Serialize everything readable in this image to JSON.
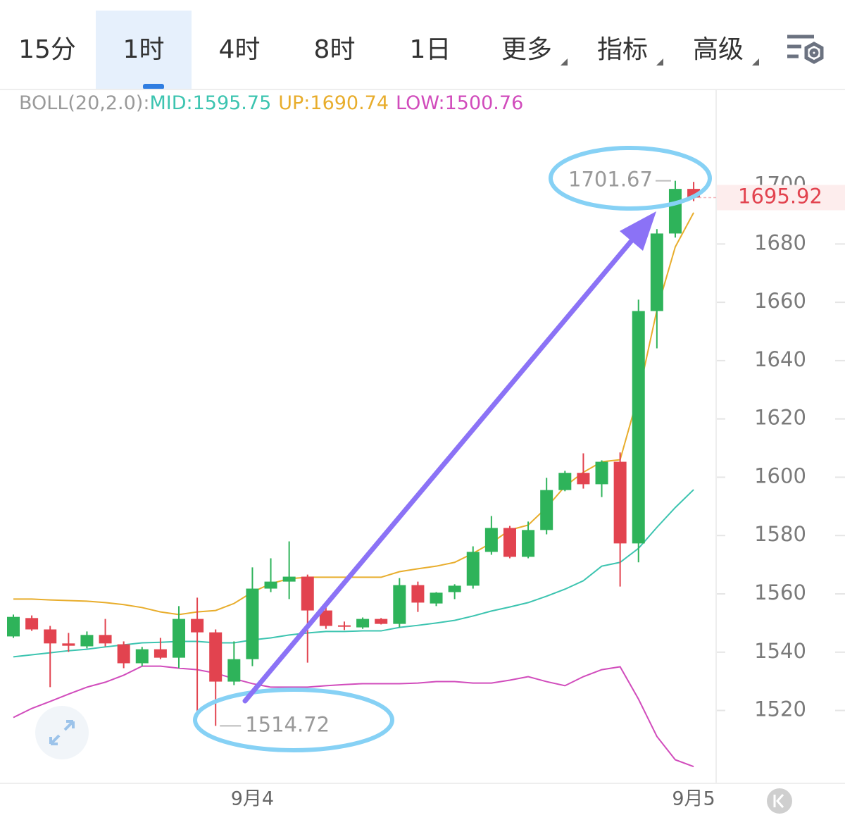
{
  "tabs": [
    "15分",
    "1时",
    "4时",
    "8时",
    "1日",
    "更多",
    "指标",
    "高级"
  ],
  "active_tab": 1,
  "chart_data": {
    "type": "candlestick",
    "indicator_label": "BOLL(20,2.0):",
    "categories": [
      null,
      null,
      null,
      null,
      null,
      null,
      null,
      null,
      null,
      null,
      null,
      null,
      null,
      "9月4",
      null,
      null,
      null,
      null,
      null,
      null,
      null,
      null,
      null,
      null,
      null,
      null,
      null,
      null,
      null,
      null,
      null,
      null,
      null,
      null,
      null,
      null,
      null,
      "9月5"
    ],
    "open": [
      1545.4,
      1551.7,
      1547.8,
      1543.0,
      1542.0,
      1545.9,
      1542.7,
      1536.2,
      1541.0,
      1538.1,
      1551.4,
      1546.8,
      1529.9,
      1537.6,
      1561.8,
      1564.2,
      1565.9,
      1554.3,
      1549.2,
      1548.5,
      1551.4,
      1549.7,
      1563.0,
      1556.7,
      1560.6,
      1562.8,
      1574.4,
      1582.6,
      1572.7,
      1581.9,
      1595.6,
      1601.5,
      1597.6,
      1605.3,
      1577.3,
      1657.0,
      1683.6,
      1698.9
    ],
    "high": [
      1552.9,
      1552.6,
      1549.0,
      1546.6,
      1547.1,
      1551.4,
      1543.7,
      1541.8,
      1544.9,
      1555.8,
      1558.7,
      1547.8,
      1543.7,
      1569.1,
      1572.2,
      1578.0,
      1566.6,
      1555.3,
      1550.5,
      1551.9,
      1551.7,
      1565.4,
      1564.2,
      1560.6,
      1563.3,
      1576.3,
      1586.7,
      1583.3,
      1584.8,
      1599.8,
      1602.2,
      1608.2,
      1605.8,
      1608.5,
      1660.9,
      1685.1,
      1701.67,
      1701.3
    ],
    "low": [
      1544.9,
      1547.3,
      1528.0,
      1540.1,
      1541.3,
      1542.0,
      1534.5,
      1535.2,
      1537.6,
      1534.5,
      1519.5,
      1514.72,
      1528.7,
      1535.2,
      1560.6,
      1558.2,
      1536.4,
      1548.0,
      1547.6,
      1548.0,
      1549.5,
      1548.5,
      1553.8,
      1555.8,
      1558.2,
      1561.8,
      1573.4,
      1572.2,
      1572.2,
      1580.4,
      1595.2,
      1596.1,
      1593.2,
      1562.5,
      1570.8,
      1644.2,
      1682.2,
      1694.7
    ],
    "close": [
      1552.1,
      1547.8,
      1543.0,
      1542.2,
      1545.9,
      1543.0,
      1536.2,
      1541.0,
      1538.1,
      1551.4,
      1546.8,
      1529.9,
      1537.6,
      1561.8,
      1564.2,
      1565.9,
      1554.3,
      1549.0,
      1548.8,
      1551.4,
      1549.7,
      1563.0,
      1557.0,
      1560.4,
      1562.8,
      1574.4,
      1582.6,
      1572.7,
      1581.9,
      1595.6,
      1601.5,
      1597.6,
      1605.3,
      1577.3,
      1657.0,
      1683.6,
      1698.9,
      1695.92
    ],
    "up_color": "#2eb35a",
    "down_color": "#e2434f",
    "overlays": [
      {
        "name": "MID:",
        "color": "#3cc4b0",
        "values": [
          1538.4,
          1539.1,
          1539.8,
          1540.5,
          1541.0,
          1541.8,
          1542.5,
          1543.2,
          1543.4,
          1543.7,
          1543.7,
          1543.2,
          1543.2,
          1544.2,
          1544.9,
          1545.9,
          1546.6,
          1547.1,
          1547.1,
          1547.3,
          1547.3,
          1548.5,
          1549.2,
          1550.0,
          1550.9,
          1552.4,
          1554.1,
          1555.5,
          1557.0,
          1559.2,
          1561.6,
          1564.5,
          1569.5,
          1570.8,
          1575.6,
          1582.8,
          1589.6,
          1595.75
        ]
      },
      {
        "name": "UP:",
        "color": "#e8ad2c",
        "values": [
          1558.2,
          1558.2,
          1557.9,
          1557.7,
          1557.5,
          1557.0,
          1556.3,
          1555.3,
          1553.8,
          1552.9,
          1553.8,
          1554.3,
          1556.7,
          1560.6,
          1563.5,
          1565.2,
          1565.7,
          1565.7,
          1565.7,
          1565.7,
          1565.7,
          1567.6,
          1568.6,
          1569.5,
          1570.8,
          1573.9,
          1577.5,
          1581.9,
          1583.6,
          1589.6,
          1596.9,
          1601.7,
          1605.3,
          1606.0,
          1628.3,
          1657.3,
          1679.0,
          1690.74
        ]
      },
      {
        "name": "LOW:",
        "color": "#d14cbc",
        "values": [
          1517.6,
          1520.7,
          1523.1,
          1525.6,
          1528.0,
          1529.7,
          1532.1,
          1535.2,
          1535.2,
          1534.5,
          1534.0,
          1532.8,
          1530.9,
          1529.2,
          1528.0,
          1528.0,
          1528.0,
          1528.5,
          1528.9,
          1529.2,
          1529.2,
          1529.2,
          1529.4,
          1529.9,
          1529.9,
          1529.4,
          1529.4,
          1530.4,
          1531.6,
          1529.9,
          1528.5,
          1531.6,
          1534.0,
          1535.0,
          1523.9,
          1511.1,
          1503.1,
          1500.76
        ]
      }
    ],
    "ylim": [
      1495,
      1733
    ],
    "yticks": [
      1520,
      1540,
      1560,
      1580,
      1600,
      1620,
      1640,
      1660,
      1680,
      1700
    ]
  }
}
